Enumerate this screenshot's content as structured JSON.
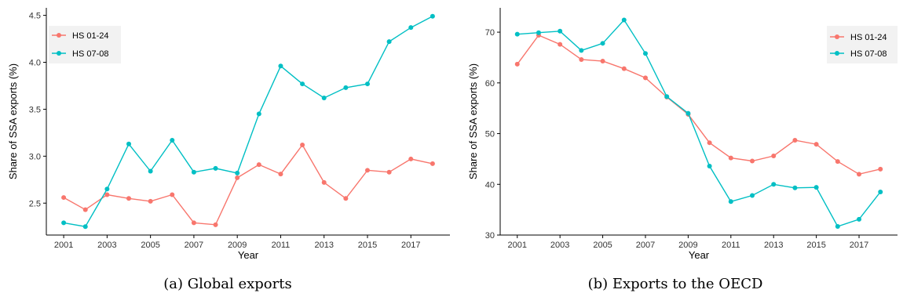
{
  "colors": {
    "hs_01_24": "#F8766D",
    "hs_07_08": "#00BFC4"
  },
  "chart_data": [
    {
      "type": "line",
      "caption": "(a) Global exports",
      "xlabel": "Year",
      "ylabel": "Share of SSA exports (%)",
      "x": [
        2001,
        2002,
        2003,
        2004,
        2005,
        2006,
        2007,
        2008,
        2009,
        2010,
        2011,
        2012,
        2013,
        2014,
        2015,
        2016,
        2017,
        2018
      ],
      "xticks": [
        "2001",
        "2003",
        "2005",
        "2007",
        "2009",
        "2011",
        "2013",
        "2015",
        "2017"
      ],
      "xlim": [
        2000.2,
        2018.8
      ],
      "yticks": [
        "2.5",
        "3.0",
        "3.5",
        "4.0",
        "4.5"
      ],
      "ylim": [
        2.16,
        4.58
      ],
      "legend_position": "top-left",
      "grid": false,
      "series": [
        {
          "name": "HS 01-24",
          "color": "#F8766D",
          "values": [
            2.56,
            2.43,
            2.59,
            2.55,
            2.52,
            2.59,
            2.29,
            2.27,
            2.77,
            2.91,
            2.81,
            3.12,
            2.72,
            2.55,
            2.85,
            2.83,
            2.97,
            2.92
          ]
        },
        {
          "name": "HS 07-08",
          "color": "#00BFC4",
          "values": [
            2.29,
            2.25,
            2.65,
            3.13,
            2.84,
            3.17,
            2.83,
            2.87,
            2.82,
            3.45,
            3.96,
            3.77,
            3.62,
            3.73,
            3.77,
            4.22,
            4.37,
            4.49
          ]
        }
      ]
    },
    {
      "type": "line",
      "caption": "(b) Exports to the OECD",
      "xlabel": "Year",
      "ylabel": "Share of SSA exports (%)",
      "x": [
        2001,
        2002,
        2003,
        2004,
        2005,
        2006,
        2007,
        2008,
        2009,
        2010,
        2011,
        2012,
        2013,
        2014,
        2015,
        2016,
        2017,
        2018
      ],
      "xticks": [
        "2001",
        "2003",
        "2005",
        "2007",
        "2009",
        "2011",
        "2013",
        "2015",
        "2017"
      ],
      "xlim": [
        2000.2,
        2018.8
      ],
      "yticks": [
        "30",
        "40",
        "50",
        "60",
        "70"
      ],
      "ylim": [
        30.0,
        74.8
      ],
      "legend_position": "top-right",
      "grid": false,
      "series": [
        {
          "name": "HS 01-24",
          "color": "#F8766D",
          "values": [
            63.7,
            69.4,
            67.6,
            64.6,
            64.3,
            62.8,
            61.0,
            57.2,
            53.8,
            48.2,
            45.2,
            44.6,
            45.6,
            48.7,
            47.9,
            44.5,
            42.0,
            43.0
          ]
        },
        {
          "name": "HS 07-08",
          "color": "#00BFC4",
          "values": [
            69.6,
            69.9,
            70.2,
            66.4,
            67.8,
            72.4,
            65.8,
            57.3,
            54.0,
            43.6,
            36.6,
            37.8,
            40.0,
            39.3,
            39.4,
            31.7,
            33.1,
            38.5
          ]
        }
      ]
    }
  ]
}
